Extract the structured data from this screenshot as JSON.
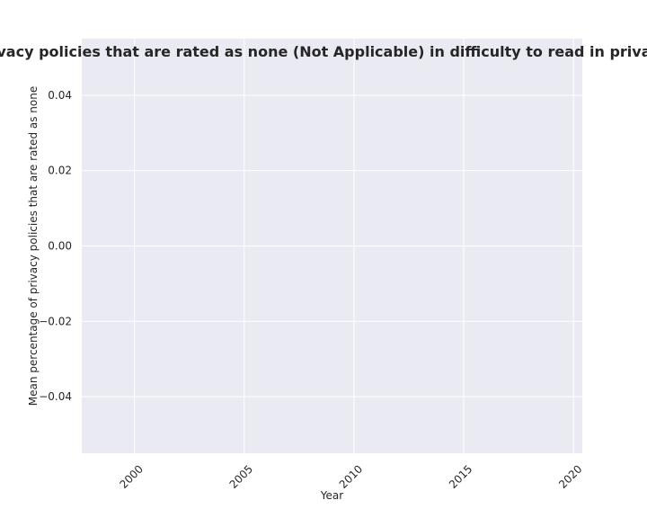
{
  "chart_data": {
    "type": "line",
    "title": "Mean percentage of privacy policies that are rated as none (Not Applicable) in difficulty to read in privacy policies by Year where",
    "xlabel": "Year",
    "ylabel": "Mean percentage of privacy policies that are rated as none",
    "x_ticks": [
      2000,
      2005,
      2010,
      2015,
      2020
    ],
    "y_ticks": [
      -0.04,
      -0.02,
      0.0,
      0.02,
      0.04
    ],
    "y_tick_labels": [
      "−0.04",
      "−0.02",
      "0.00",
      "0.02",
      "0.04"
    ],
    "xlim": [
      1997.6,
      2020.4
    ],
    "ylim": [
      -0.055,
      0.055
    ],
    "series": [],
    "grid": true,
    "colors": {
      "plot_background": "#eaeaf2",
      "grid": "#ffffff",
      "text": "#262626"
    }
  }
}
